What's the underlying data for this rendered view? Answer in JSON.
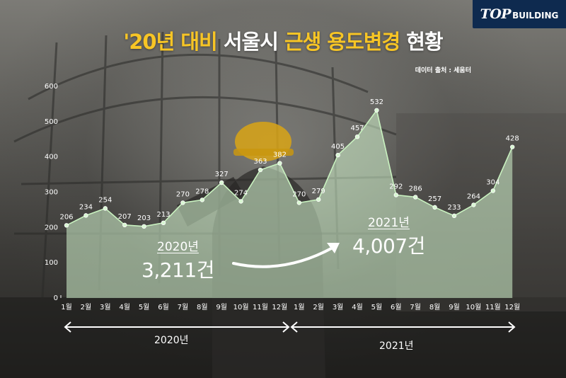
{
  "brand": {
    "mark": "TOP",
    "word": "BUILDING"
  },
  "title": {
    "part1": "'20년 대비 ",
    "part2": "서울시 ",
    "part3": "근생 용도변경",
    "part4": " 현황"
  },
  "source": "데이터 출처 : 세움터",
  "colors": {
    "highlight": "#f7c525",
    "fill": "#d5f5d0",
    "line": "#c9f2c0",
    "logo_bg": "#0e2a4f"
  },
  "annotations": {
    "y2020": {
      "label": "2020년",
      "count": "3,211건"
    },
    "y2021": {
      "label": "2021년",
      "count": "4,007건"
    }
  },
  "periods": [
    {
      "label": "2020년"
    },
    {
      "label": "2021년"
    }
  ],
  "chart_data": {
    "type": "area",
    "title": "'20년 대비 서울시 근생 용도변경 현황",
    "x": [
      "1월",
      "2월",
      "3월",
      "4월",
      "5월",
      "6월",
      "7월",
      "8월",
      "9월",
      "10월",
      "11월",
      "12월",
      "1월",
      "2월",
      "3월",
      "4월",
      "5월",
      "6월",
      "7월",
      "8월",
      "9월",
      "10월",
      "11월",
      "12월"
    ],
    "values": [
      206,
      234,
      254,
      207,
      203,
      213,
      270,
      278,
      327,
      274,
      363,
      382,
      270,
      279,
      405,
      457,
      532,
      292,
      286,
      257,
      233,
      264,
      304,
      428
    ],
    "yticks": [
      0,
      100,
      200,
      300,
      400,
      500,
      600
    ],
    "ylim": [
      0,
      600
    ],
    "xlabel": "",
    "ylabel": "",
    "grid": false
  }
}
